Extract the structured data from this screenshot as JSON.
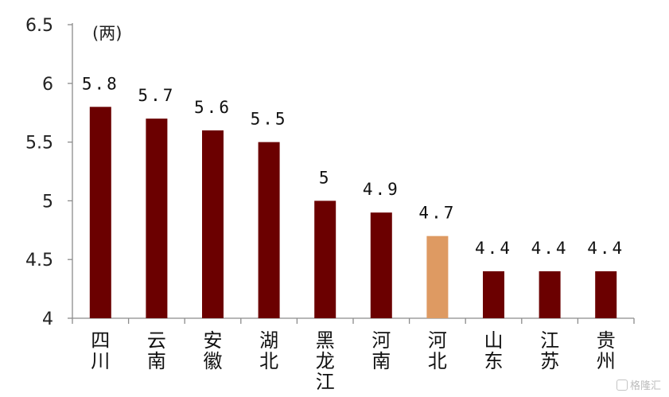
{
  "chart_data": {
    "type": "bar",
    "unit_label": "(两)",
    "categories": [
      "四川",
      "云南",
      "安徽",
      "湖北",
      "黑龙江",
      "河南",
      "河北",
      "山东",
      "江苏",
      "贵州"
    ],
    "values": [
      5.8,
      5.7,
      5.6,
      5.5,
      5.0,
      4.9,
      4.7,
      4.4,
      4.4,
      4.4
    ],
    "value_labels": [
      "5.8",
      "5.7",
      "5.6",
      "5.5",
      "5",
      "4.9",
      "4.7",
      "4.4",
      "4.4",
      "4.4"
    ],
    "highlight_index": 6,
    "ylim": [
      4,
      6.5
    ],
    "yticks": [
      "4",
      "4.5",
      "5",
      "5.5",
      "6",
      "6.5"
    ],
    "colors": {
      "bar": "#6b0000",
      "highlight": "#de9a62",
      "axis": "#8c8c8c"
    },
    "grid": false
  },
  "watermark": {
    "text": "格隆汇"
  }
}
